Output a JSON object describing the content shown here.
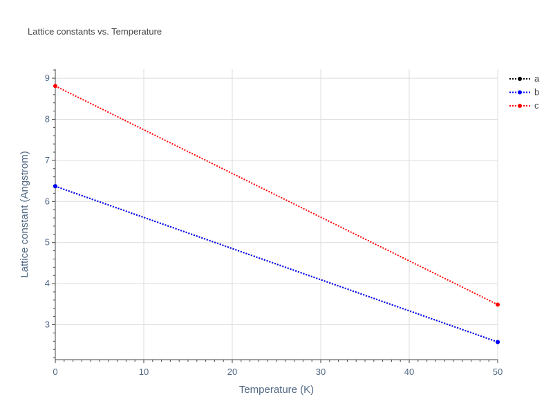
{
  "chart_data": {
    "type": "line",
    "title": "Lattice constants vs. Temperature",
    "xlabel": "Temperature (K)",
    "ylabel": "Lattice constant (Angstrom)",
    "xlim": [
      0,
      50
    ],
    "ylim": [
      2.15,
      9.22
    ],
    "x_ticks": [
      0,
      10,
      20,
      30,
      40,
      50
    ],
    "y_ticks": [
      3,
      4,
      5,
      6,
      7,
      8,
      9
    ],
    "grid": true,
    "legend_position": "top-right",
    "line_style": "dotted",
    "series": [
      {
        "name": "a",
        "color": "#000000",
        "x": [
          0,
          50
        ],
        "y": [
          6.37,
          2.58
        ]
      },
      {
        "name": "b",
        "color": "#0000ff",
        "x": [
          0,
          50
        ],
        "y": [
          6.37,
          2.58
        ]
      },
      {
        "name": "c",
        "color": "#ff0000",
        "x": [
          0,
          50
        ],
        "y": [
          8.81,
          3.49
        ]
      }
    ]
  }
}
